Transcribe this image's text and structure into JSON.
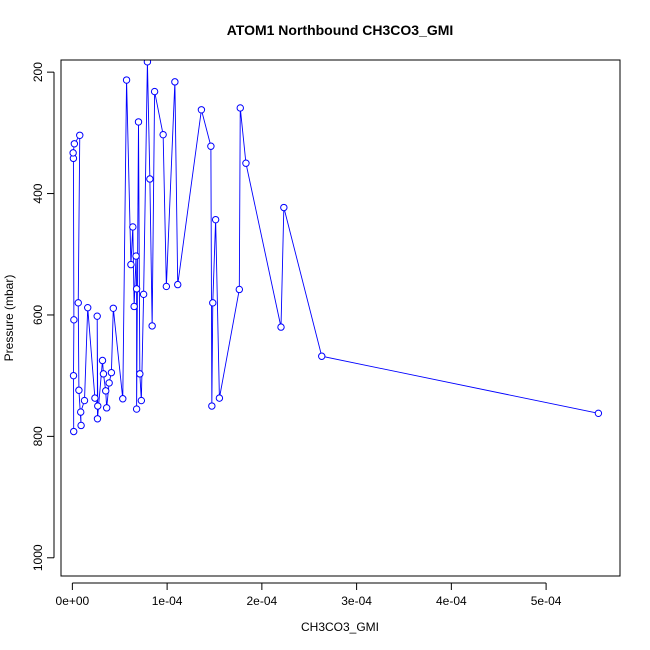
{
  "chart_data": {
    "type": "line",
    "title": "ATOM1 Northbound CH3CO3_GMI",
    "xlabel": "CH3CO3_GMI",
    "ylabel": "Pressure (mbar)",
    "xlim": [
      -1.2e-05,
      0.000578
    ],
    "ylim": [
      1030,
      180
    ],
    "y_reversed": true,
    "xticks": [
      0,
      0.0001,
      0.0002,
      0.0003,
      0.0004,
      0.0005
    ],
    "xtick_labels": [
      "0e+00",
      "1e-04",
      "2e-04",
      "3e-04",
      "4e-04",
      "5e-04"
    ],
    "yticks": [
      200,
      400,
      600,
      800,
      1000
    ],
    "ytick_labels": [
      "200",
      "400",
      "600",
      "800",
      "1000"
    ],
    "grid": false,
    "legend": "none",
    "series_color": "#0000ff",
    "series": [
      {
        "points": [
          [
            1.4e-06,
            792
          ],
          [
            1.2e-06,
            700
          ],
          [
            1.6e-06,
            608
          ],
          [
            1.1e-06,
            342
          ],
          [
            8e-07,
            333
          ],
          [
            2.1e-06,
            318
          ],
          [
            7.8e-06,
            304
          ],
          [
            6.2e-06,
            580
          ],
          [
            6.9e-06,
            724
          ],
          [
            9.2e-06,
            782
          ],
          [
            8.8e-06,
            760
          ],
          [
            1.28e-05,
            741
          ],
          [
            1.62e-05,
            588
          ],
          [
            2.38e-05,
            737
          ],
          [
            2.68e-05,
            750
          ],
          [
            2.62e-05,
            602
          ],
          [
            2.65e-05,
            771
          ],
          [
            3.18e-05,
            675
          ],
          [
            3.28e-05,
            697
          ],
          [
            3.52e-05,
            725
          ],
          [
            3.62e-05,
            753
          ],
          [
            3.88e-05,
            712
          ],
          [
            4.12e-05,
            695
          ],
          [
            4.32e-05,
            589
          ],
          [
            5.32e-05,
            738
          ],
          [
            5.72e-05,
            213
          ],
          [
            6.18e-05,
            517
          ],
          [
            6.38e-05,
            455
          ],
          [
            6.52e-05,
            586
          ],
          [
            6.72e-05,
            503
          ],
          [
            6.78e-05,
            557
          ],
          [
            6.78e-05,
            755
          ],
          [
            6.98e-05,
            282
          ],
          [
            7.12e-05,
            697
          ],
          [
            7.28e-05,
            741
          ],
          [
            7.52e-05,
            566
          ],
          [
            7.92e-05,
            183
          ],
          [
            8.18e-05,
            376
          ],
          [
            8.42e-05,
            618
          ],
          [
            8.68e-05,
            232
          ],
          [
            9.58e-05,
            303
          ],
          [
            9.92e-05,
            553
          ],
          [
            0.0001082,
            216
          ],
          [
            0.0001112,
            550
          ],
          [
            0.0001362,
            262
          ],
          [
            0.0001462,
            322
          ],
          [
            0.0001472,
            750
          ],
          [
            0.0001482,
            580
          ],
          [
            0.0001512,
            443
          ],
          [
            0.0001552,
            737
          ],
          [
            0.0001762,
            558
          ],
          [
            0.0001772,
            259
          ],
          [
            0.0001832,
            350
          ],
          [
            0.0002202,
            620
          ],
          [
            0.0002232,
            423
          ],
          [
            0.0002632,
            668
          ],
          [
            0.0005552,
            762
          ]
        ]
      }
    ]
  }
}
